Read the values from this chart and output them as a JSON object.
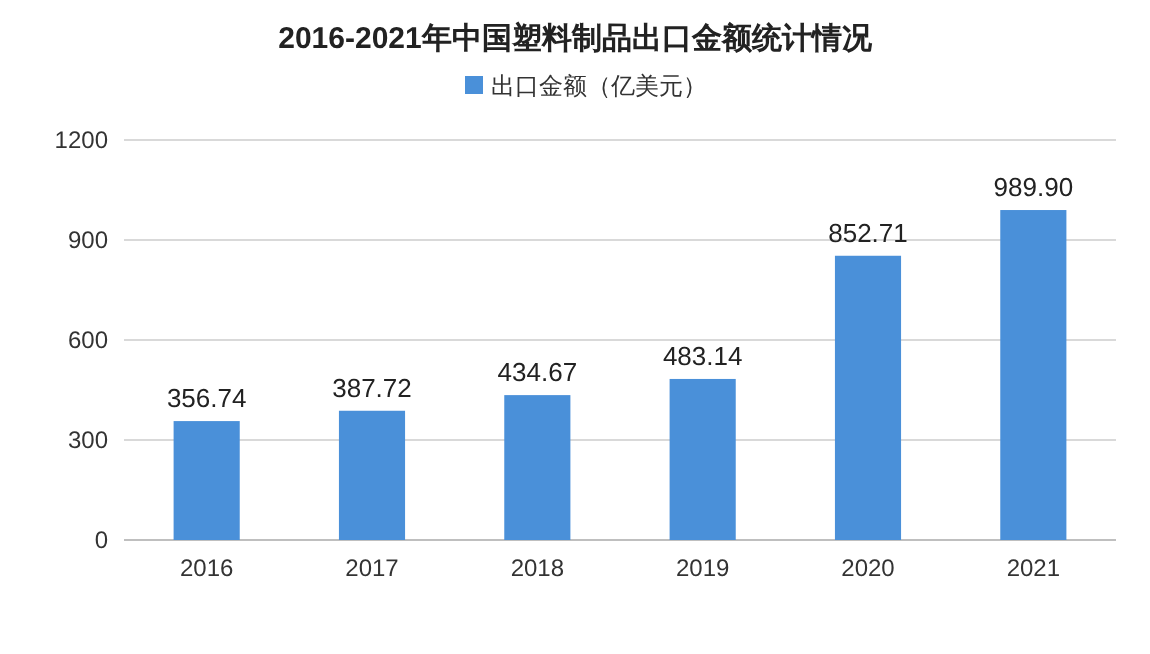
{
  "chart_data": {
    "type": "bar",
    "title": "2016-2021年中国塑料制品出口金额统计情况",
    "categories": [
      "2016",
      "2017",
      "2018",
      "2019",
      "2020",
      "2021"
    ],
    "series": [
      {
        "name": "出口金额（亿美元）",
        "color": "#4a90d9",
        "values": [
          356.74,
          387.72,
          434.67,
          483.14,
          852.71,
          989.9
        ],
        "value_labels": [
          "356.74",
          "387.72",
          "434.67",
          "483.14",
          "852.71",
          "989.90"
        ]
      }
    ],
    "ylim": [
      0,
      1200
    ],
    "yticks": [
      0,
      300,
      600,
      900,
      1200
    ],
    "grid": "y",
    "legend": "top"
  }
}
